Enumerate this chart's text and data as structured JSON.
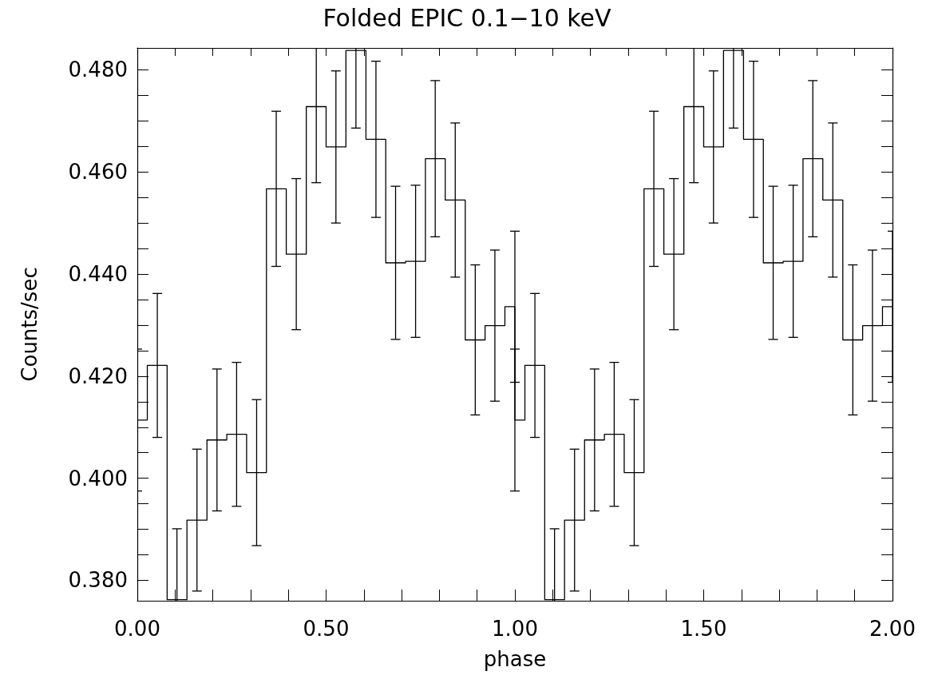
{
  "chart_data": {
    "type": "step",
    "title": "Folded EPIC 0.1−10 keV",
    "xlabel": "phase",
    "ylabel": "Counts/sec",
    "x": [
      0,
      0.053,
      0.105,
      0.158,
      0.211,
      0.263,
      0.316,
      0.368,
      0.421,
      0.474,
      0.526,
      0.579,
      0.632,
      0.684,
      0.737,
      0.789,
      0.842,
      0.895,
      0.947,
      1.0,
      1.0,
      1.053,
      1.105,
      1.158,
      1.211,
      1.263,
      1.316,
      1.368,
      1.421,
      1.474,
      1.526,
      1.579,
      1.632,
      1.684,
      1.737,
      1.789,
      1.842,
      1.895,
      1.947,
      2.0
    ],
    "series": [
      {
        "color": "#000000",
        "values": [
          0.4114,
          0.4221,
          0.3762,
          0.3918,
          0.4075,
          0.4086,
          0.4011,
          0.4567,
          0.4439,
          0.4728,
          0.4649,
          0.4838,
          0.4664,
          0.4422,
          0.4425,
          0.4626,
          0.4545,
          0.4271,
          0.4299,
          0.4336,
          0.4114,
          0.4221,
          0.3762,
          0.3918,
          0.4075,
          0.4086,
          0.4011,
          0.4567,
          0.4439,
          0.4728,
          0.4649,
          0.4838,
          0.4664,
          0.4422,
          0.4425,
          0.4626,
          0.4545,
          0.4271,
          0.4299,
          0.4336
        ],
        "errors": [
          0.0139,
          0.0141,
          0.0139,
          0.0139,
          0.0139,
          0.0141,
          0.0143,
          0.0152,
          0.0148,
          0.0149,
          0.0149,
          0.0152,
          0.0153,
          0.015,
          0.0149,
          0.0153,
          0.0151,
          0.0147,
          0.0148,
          0.0148,
          0.0139,
          0.0141,
          0.0139,
          0.0139,
          0.0139,
          0.0141,
          0.0143,
          0.0152,
          0.0148,
          0.0149,
          0.0149,
          0.0152,
          0.0153,
          0.015,
          0.0149,
          0.0153,
          0.0151,
          0.0147,
          0.0148,
          0.0148
        ]
      }
    ],
    "xlim": [
      0,
      2
    ],
    "ylim": [
      0.376,
      0.4843
    ],
    "xticks": [
      {
        "value": 0,
        "label": "0.00"
      },
      {
        "value": 0.1,
        "label": null
      },
      {
        "value": 0.2,
        "label": null
      },
      {
        "value": 0.3,
        "label": null
      },
      {
        "value": 0.4,
        "label": null
      },
      {
        "value": 0.5,
        "label": "0.50"
      },
      {
        "value": 0.6,
        "label": null
      },
      {
        "value": 0.7,
        "label": null
      },
      {
        "value": 0.8,
        "label": null
      },
      {
        "value": 0.9,
        "label": null
      },
      {
        "value": 1,
        "label": "1.00"
      },
      {
        "value": 1.1,
        "label": null
      },
      {
        "value": 1.2,
        "label": null
      },
      {
        "value": 1.3,
        "label": null
      },
      {
        "value": 1.4,
        "label": null
      },
      {
        "value": 1.5,
        "label": "1.50"
      },
      {
        "value": 1.6,
        "label": null
      },
      {
        "value": 1.7,
        "label": null
      },
      {
        "value": 1.8,
        "label": null
      },
      {
        "value": 1.9,
        "label": null
      },
      {
        "value": 2,
        "label": "2.00"
      }
    ],
    "yticks": [
      {
        "value": 0.38,
        "label": "0.380"
      },
      {
        "value": 0.385,
        "label": null
      },
      {
        "value": 0.39,
        "label": null
      },
      {
        "value": 0.395,
        "label": null
      },
      {
        "value": 0.4,
        "label": "0.400"
      },
      {
        "value": 0.405,
        "label": null
      },
      {
        "value": 0.41,
        "label": null
      },
      {
        "value": 0.415,
        "label": null
      },
      {
        "value": 0.42,
        "label": "0.420"
      },
      {
        "value": 0.425,
        "label": null
      },
      {
        "value": 0.43,
        "label": null
      },
      {
        "value": 0.435,
        "label": null
      },
      {
        "value": 0.44,
        "label": "0.440"
      },
      {
        "value": 0.445,
        "label": null
      },
      {
        "value": 0.45,
        "label": null
      },
      {
        "value": 0.455,
        "label": null
      },
      {
        "value": 0.46,
        "label": "0.460"
      },
      {
        "value": 0.465,
        "label": null
      },
      {
        "value": 0.47,
        "label": null
      },
      {
        "value": 0.475,
        "label": null
      },
      {
        "value": 0.48,
        "label": "0.480"
      }
    ],
    "marker": "none",
    "grid": false
  }
}
